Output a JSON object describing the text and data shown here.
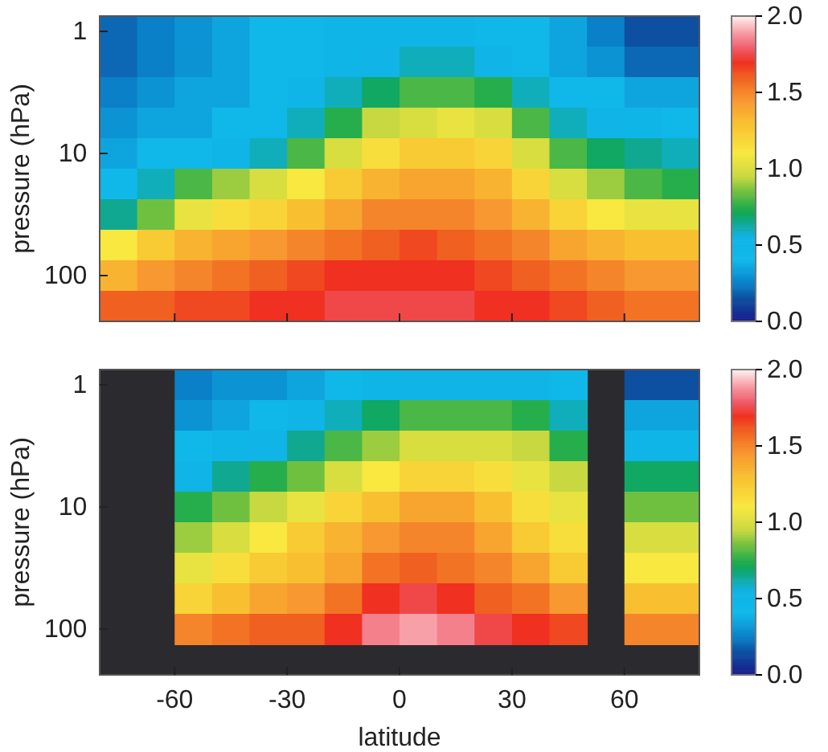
{
  "chart_data": [
    {
      "type": "heatmap",
      "ylabel": "pressure (hPa)",
      "tick_labels": "y",
      "x": [
        -75,
        -65,
        -55,
        -45,
        -35,
        -25,
        -15,
        -5,
        5,
        15,
        25,
        35,
        45,
        55,
        65,
        75
      ],
      "xlim": [
        -80,
        80
      ],
      "xticks": [
        -60,
        -30,
        0,
        30,
        60
      ],
      "y_categories": [
        "1",
        null,
        null,
        null,
        "10",
        null,
        null,
        null,
        "100",
        null
      ],
      "clim": [
        0,
        2
      ],
      "cticks": [
        {
          "value": 0,
          "label": "0.0"
        },
        {
          "value": 0.5,
          "label": "0.5"
        },
        {
          "value": 1,
          "label": "1.0"
        },
        {
          "value": 1.5,
          "label": "1.5"
        },
        {
          "value": 2,
          "label": "2.0"
        }
      ],
      "cells": [
        [
          0.2,
          0.25,
          0.3,
          0.35,
          0.4,
          0.45,
          0.5,
          0.5,
          0.5,
          0.5,
          0.45,
          0.4,
          0.35,
          0.25,
          0.15,
          0.15
        ],
        [
          0.2,
          0.25,
          0.3,
          0.35,
          0.4,
          0.45,
          0.5,
          0.55,
          0.6,
          0.6,
          0.55,
          0.45,
          0.35,
          0.3,
          0.2,
          0.2
        ],
        [
          0.25,
          0.3,
          0.35,
          0.35,
          0.4,
          0.5,
          0.6,
          0.7,
          0.8,
          0.8,
          0.75,
          0.6,
          0.45,
          0.4,
          0.35,
          0.35
        ],
        [
          0.3,
          0.35,
          0.35,
          0.4,
          0.45,
          0.6,
          0.75,
          0.95,
          1.0,
          1.05,
          1.0,
          0.8,
          0.6,
          0.55,
          0.5,
          0.45
        ],
        [
          0.35,
          0.4,
          0.45,
          0.5,
          0.6,
          0.8,
          1.0,
          1.15,
          1.25,
          1.25,
          1.2,
          1.0,
          0.8,
          0.7,
          0.65,
          0.6
        ],
        [
          0.45,
          0.6,
          0.8,
          0.9,
          1.0,
          1.1,
          1.25,
          1.35,
          1.4,
          1.4,
          1.35,
          1.2,
          1.0,
          0.9,
          0.8,
          0.75
        ],
        [
          0.65,
          0.85,
          1.05,
          1.15,
          1.2,
          1.3,
          1.4,
          1.5,
          1.5,
          1.5,
          1.45,
          1.35,
          1.2,
          1.1,
          1.05,
          1.05
        ],
        [
          1.1,
          1.25,
          1.35,
          1.4,
          1.45,
          1.5,
          1.55,
          1.6,
          1.65,
          1.6,
          1.55,
          1.5,
          1.4,
          1.35,
          1.3,
          1.3
        ],
        [
          1.35,
          1.45,
          1.5,
          1.55,
          1.6,
          1.65,
          1.7,
          1.7,
          1.7,
          1.7,
          1.65,
          1.6,
          1.55,
          1.5,
          1.45,
          1.45
        ],
        [
          1.6,
          1.6,
          1.65,
          1.65,
          1.7,
          1.7,
          1.75,
          1.75,
          1.75,
          1.75,
          1.7,
          1.7,
          1.65,
          1.6,
          1.55,
          1.55
        ]
      ]
    },
    {
      "type": "heatmap",
      "ylabel": "pressure (hPa)",
      "xlabel": "latitude",
      "x": [
        -75,
        -65,
        -55,
        -45,
        -35,
        -25,
        -15,
        -5,
        5,
        15,
        25,
        35,
        45,
        55,
        65,
        75
      ],
      "xlim": [
        -80,
        80
      ],
      "xticks": [
        -60,
        -30,
        0,
        30,
        60
      ],
      "y_categories": [
        "1",
        null,
        null,
        null,
        "10",
        null,
        null,
        null,
        "100"
      ],
      "clim": [
        0,
        2
      ],
      "cticks": [
        {
          "value": 0,
          "label": "0.0"
        },
        {
          "value": 0.5,
          "label": "0.5"
        },
        {
          "value": 1,
          "label": "1.0"
        },
        {
          "value": 1.5,
          "label": "1.5"
        },
        {
          "value": 2,
          "label": "2.0"
        }
      ],
      "cells": [
        [
          null,
          null,
          0.25,
          0.3,
          0.3,
          0.35,
          0.45,
          0.5,
          0.55,
          0.55,
          0.55,
          0.55,
          0.45,
          null,
          0.15,
          0.15
        ],
        [
          null,
          null,
          0.3,
          0.35,
          0.4,
          0.5,
          0.6,
          0.7,
          0.8,
          0.8,
          0.8,
          0.75,
          0.6,
          null,
          0.35,
          0.35
        ],
        [
          null,
          null,
          0.45,
          0.5,
          0.55,
          0.65,
          0.8,
          0.9,
          1.0,
          1.0,
          1.0,
          0.95,
          0.75,
          null,
          0.5,
          0.5
        ],
        [
          null,
          null,
          0.55,
          0.65,
          0.75,
          0.85,
          1.0,
          1.1,
          1.2,
          1.2,
          1.15,
          1.05,
          0.95,
          null,
          0.7,
          0.7
        ],
        [
          null,
          null,
          0.75,
          0.85,
          0.95,
          1.05,
          1.2,
          1.3,
          1.4,
          1.4,
          1.3,
          1.15,
          1.05,
          null,
          0.85,
          0.85
        ],
        [
          null,
          null,
          0.9,
          1.0,
          1.1,
          1.25,
          1.35,
          1.45,
          1.5,
          1.5,
          1.4,
          1.25,
          1.15,
          null,
          1.0,
          1.0
        ],
        [
          null,
          null,
          1.05,
          1.15,
          1.25,
          1.3,
          1.4,
          1.55,
          1.6,
          1.55,
          1.5,
          1.4,
          1.25,
          null,
          1.1,
          1.1
        ],
        [
          null,
          null,
          1.2,
          1.3,
          1.4,
          1.45,
          1.55,
          1.7,
          1.75,
          1.7,
          1.6,
          1.55,
          1.45,
          null,
          1.3,
          1.3
        ],
        [
          null,
          null,
          1.5,
          1.55,
          1.6,
          1.6,
          1.7,
          1.85,
          1.9,
          1.85,
          1.75,
          1.7,
          1.65,
          null,
          1.5,
          1.5
        ]
      ]
    }
  ]
}
